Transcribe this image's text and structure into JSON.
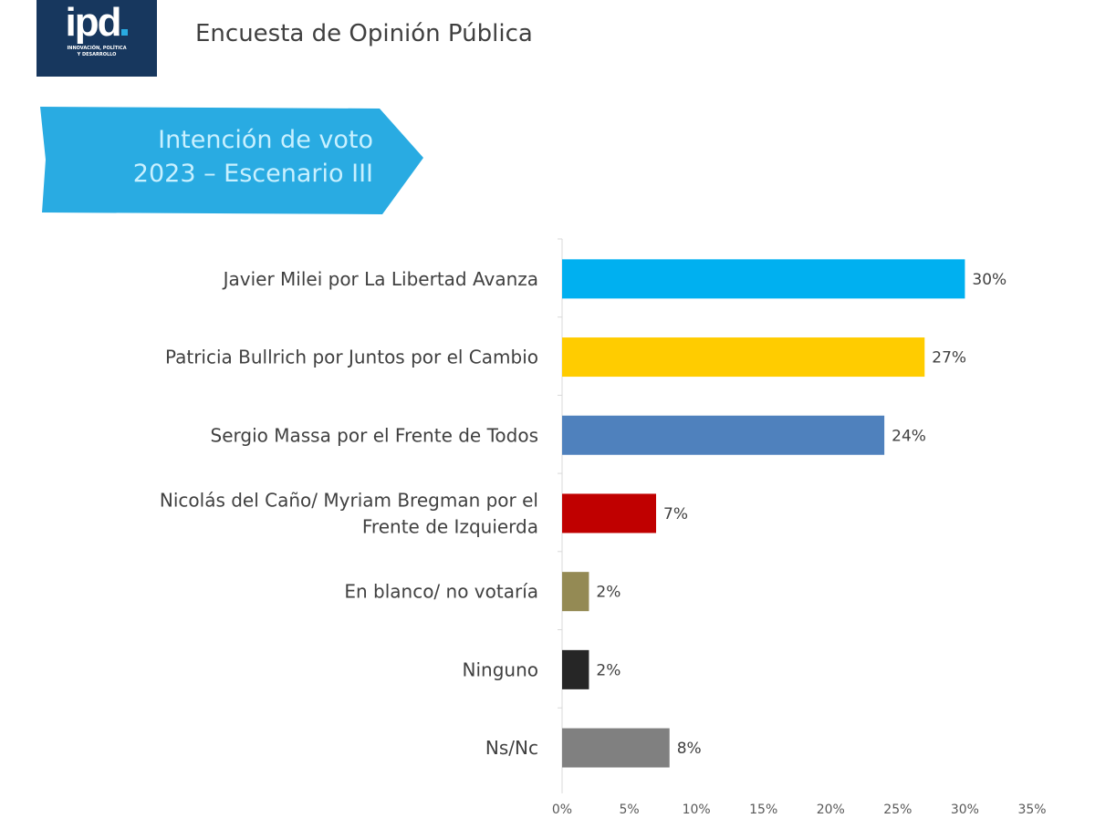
{
  "header": {
    "logo_text": "ipd",
    "logo_subtitle_line1": "INNOVACIÓN, POLÍTICA",
    "logo_subtitle_line2": "Y DESARROLLO",
    "title": "Encuesta de Opinión Pública"
  },
  "banner": {
    "line1": "Intención de voto",
    "line2": "2023 – Escenario III",
    "color": "#29abe2"
  },
  "chart_data": {
    "type": "bar",
    "orientation": "horizontal",
    "title": "Intención de voto 2023 – Escenario III",
    "categories": [
      [
        "Javier Milei por La Libertad Avanza"
      ],
      [
        "Patricia Bullrich por Juntos por el Cambio"
      ],
      [
        "Sergio Massa por el Frente de Todos"
      ],
      [
        "Nicolás del Caño/ Myriam Bregman por el",
        "Frente de Izquierda"
      ],
      [
        "En blanco/ no votaría"
      ],
      [
        "Ninguno"
      ],
      [
        "Ns/Nc"
      ]
    ],
    "values": [
      30,
      27,
      24,
      7,
      2,
      2,
      8
    ],
    "value_labels": [
      "30%",
      "27%",
      "24%",
      "7%",
      "2%",
      "2%",
      "8%"
    ],
    "colors": [
      "#00b0f0",
      "#ffcc00",
      "#4f81bd",
      "#c00000",
      "#948a54",
      "#262626",
      "#808080"
    ],
    "xlim": [
      0,
      35
    ],
    "xticks": [
      "0%",
      "5%",
      "10%",
      "15%",
      "20%",
      "25%",
      "30%",
      "35%"
    ],
    "grid": false
  }
}
